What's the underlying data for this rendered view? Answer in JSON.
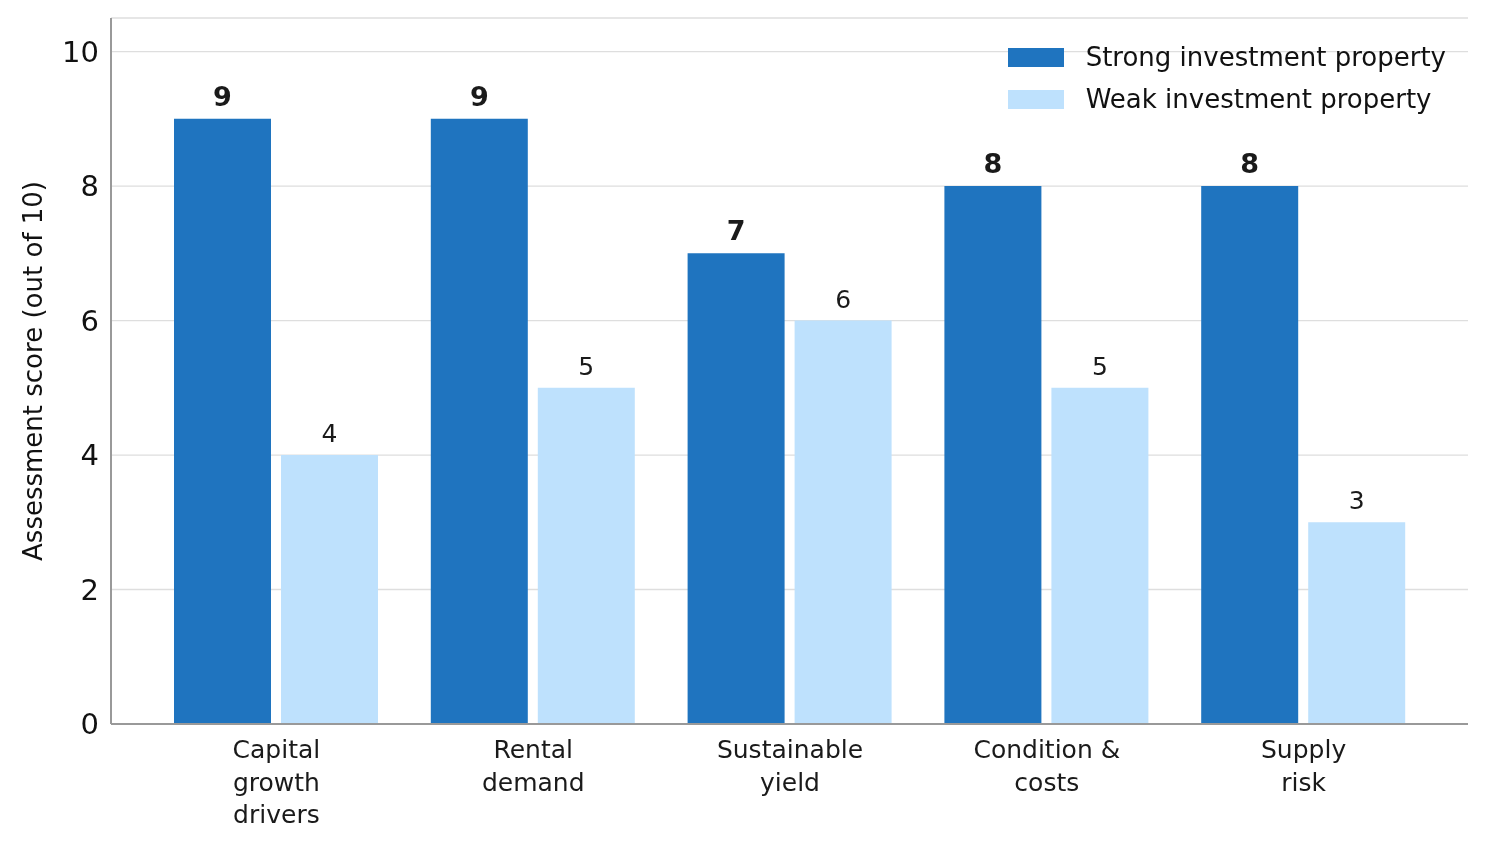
{
  "chart_data": {
    "type": "bar",
    "categories": [
      "Capital\ngrowth\ndrivers",
      "Rental\ndemand",
      "Sustainable\nyield",
      "Condition &\ncosts",
      "Supply\nrisk"
    ],
    "series": [
      {
        "name": "Strong investment property",
        "color": "#1f74bf",
        "values": [
          9,
          9,
          7,
          8,
          8
        ]
      },
      {
        "name": "Weak investment property",
        "color": "#bee1fd",
        "values": [
          4,
          5,
          6,
          5,
          3
        ]
      }
    ],
    "ylabel": "Assessment score (out of 10)",
    "ylim": [
      0,
      10.5
    ],
    "yticks": [
      0,
      2,
      4,
      6,
      8,
      10
    ],
    "grid": "y",
    "legend": "top right",
    "data_labels": true
  }
}
